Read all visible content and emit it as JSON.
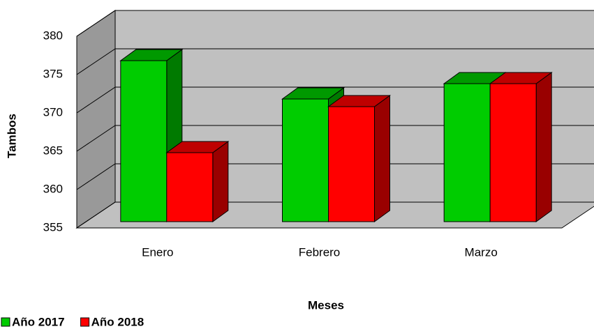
{
  "chart_data": {
    "type": "bar3d",
    "x_label": "Meses",
    "y_label": "Tambos",
    "categories": [
      "Enero",
      "Febrero",
      "Marzo"
    ],
    "series": [
      {
        "name": "Año 2017",
        "color": "#00cc00",
        "values": [
          376,
          371,
          373
        ]
      },
      {
        "name": "Año 2018",
        "color": "#ff0000",
        "values": [
          364,
          370,
          373
        ]
      }
    ],
    "ylim": [
      355,
      380
    ],
    "yticks": [
      355,
      360,
      365,
      370,
      375,
      380
    ],
    "grid": true,
    "legend": "bottom-left"
  }
}
